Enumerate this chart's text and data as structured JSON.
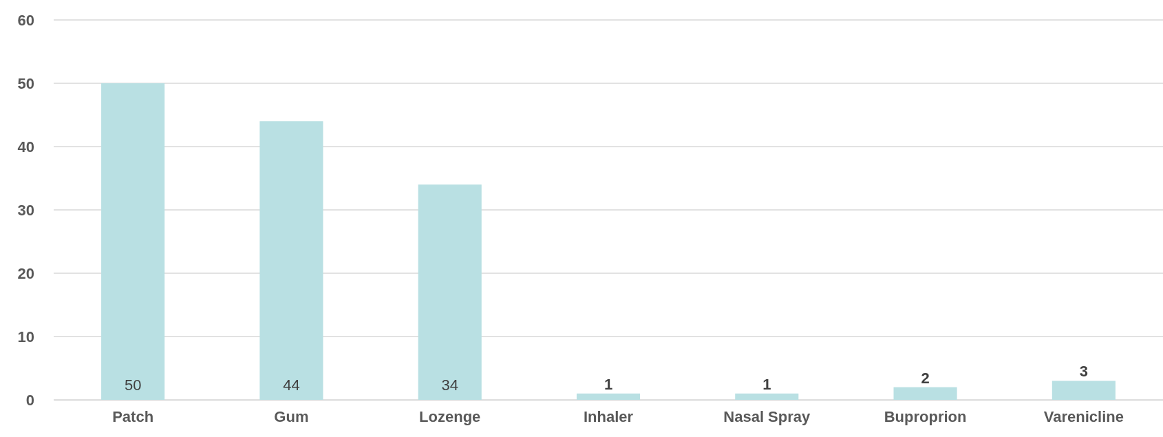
{
  "chart_data": {
    "type": "bar",
    "categories": [
      "Patch",
      "Gum",
      "Lozenge",
      "Inhaler",
      "Nasal Spray",
      "Buproprion",
      "Varenicline"
    ],
    "values": [
      50,
      44,
      34,
      1,
      1,
      2,
      3
    ],
    "color": "#b9e0e3",
    "ylim": [
      0,
      60
    ],
    "yticks": [
      0,
      10,
      20,
      30,
      40,
      50,
      60
    ],
    "grid": "y",
    "data_labels": true
  }
}
